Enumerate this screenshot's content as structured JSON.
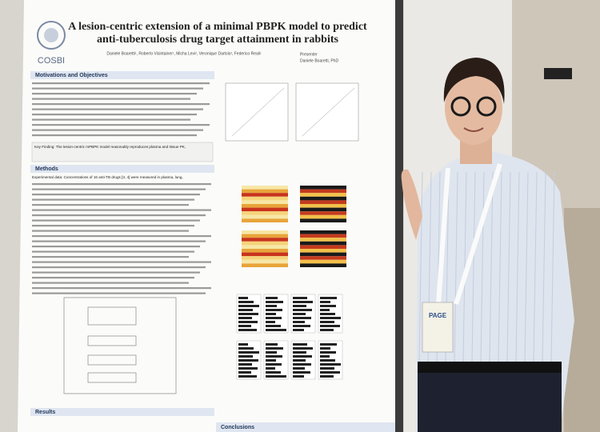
{
  "poster": {
    "title_lines": [
      "A lesion-centric extension of a minimal PBPK model to predict",
      "anti-tuberculosis drug target attainment in rabbits"
    ],
    "authors": "Daniele Boaretti¹, Roberto Visintainer¹, Micha Levi², Veronique Dartois³, Federico Reali¹",
    "logo": "COSBI",
    "presenter_label": "Presenter",
    "presenter_name": "Daniele Boaretti, PhD",
    "sections": [
      "Motivations and Objectives",
      "Methods",
      "Results",
      "Conclusions"
    ],
    "key_finding": "Key Finding: The lesion-centric mPBPK model reasonably reproduces plasma and tissue PK,",
    "methods_first": "Experimental data: Concentrations of 16 anti-TB drugs [3, 4] were measured in plasma, lung,"
  },
  "badge": "PAGE"
}
